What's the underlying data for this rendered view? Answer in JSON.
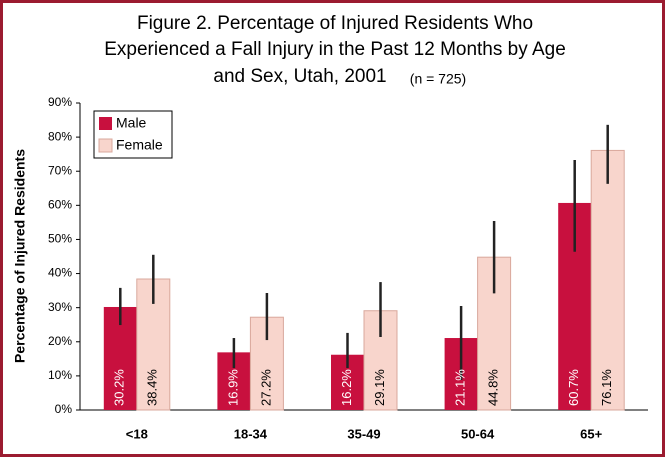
{
  "chart_data": {
    "type": "bar",
    "title": [
      "Figure 2. Percentage of Injured Residents Who",
      "Experienced a Fall Injury in the Past 12 Months by Age",
      "and Sex, Utah, 2001"
    ],
    "subtitle": "(n = 725)",
    "y_label": "Percentage of Injured Residents",
    "categories": [
      "<18",
      "18-34",
      "35-49",
      "50-64",
      "65+"
    ],
    "series": [
      {
        "name": "Male",
        "color": "#c8103e",
        "values": [
          30.2,
          16.9,
          16.2,
          21.1,
          60.7
        ],
        "value_labels": [
          "30.2%",
          "16.9%",
          "16.2%",
          "21.1%",
          "60.7%"
        ],
        "error_low": [
          24.9,
          12.3,
          12.3,
          8.8,
          46.4
        ],
        "error_high": [
          35.8,
          21.1,
          22.6,
          30.5,
          73.3
        ]
      },
      {
        "name": "Female",
        "color": "#f8d5cc",
        "values": [
          38.4,
          27.2,
          29.1,
          44.8,
          76.1
        ],
        "value_labels": [
          "38.4%",
          "27.2%",
          "29.1%",
          "44.8%",
          "76.1%"
        ],
        "error_low": [
          31.1,
          20.5,
          21.4,
          34.2,
          66.3
        ],
        "error_high": [
          45.5,
          34.3,
          37.5,
          55.4,
          83.6
        ]
      }
    ],
    "ylim": [
      0,
      90
    ],
    "yticks": [
      {
        "value": 0,
        "label": "0%"
      },
      {
        "value": 10,
        "label": "10%"
      },
      {
        "value": 20,
        "label": "20%"
      },
      {
        "value": 30,
        "label": "30%"
      },
      {
        "value": 40,
        "label": "40%"
      },
      {
        "value": 50,
        "label": "50%"
      },
      {
        "value": 60,
        "label": "60%"
      },
      {
        "value": 70,
        "label": "70%"
      },
      {
        "value": 80,
        "label": "80%"
      },
      {
        "value": 90,
        "label": "90%"
      }
    ],
    "grid": false,
    "legend": "top-left"
  }
}
